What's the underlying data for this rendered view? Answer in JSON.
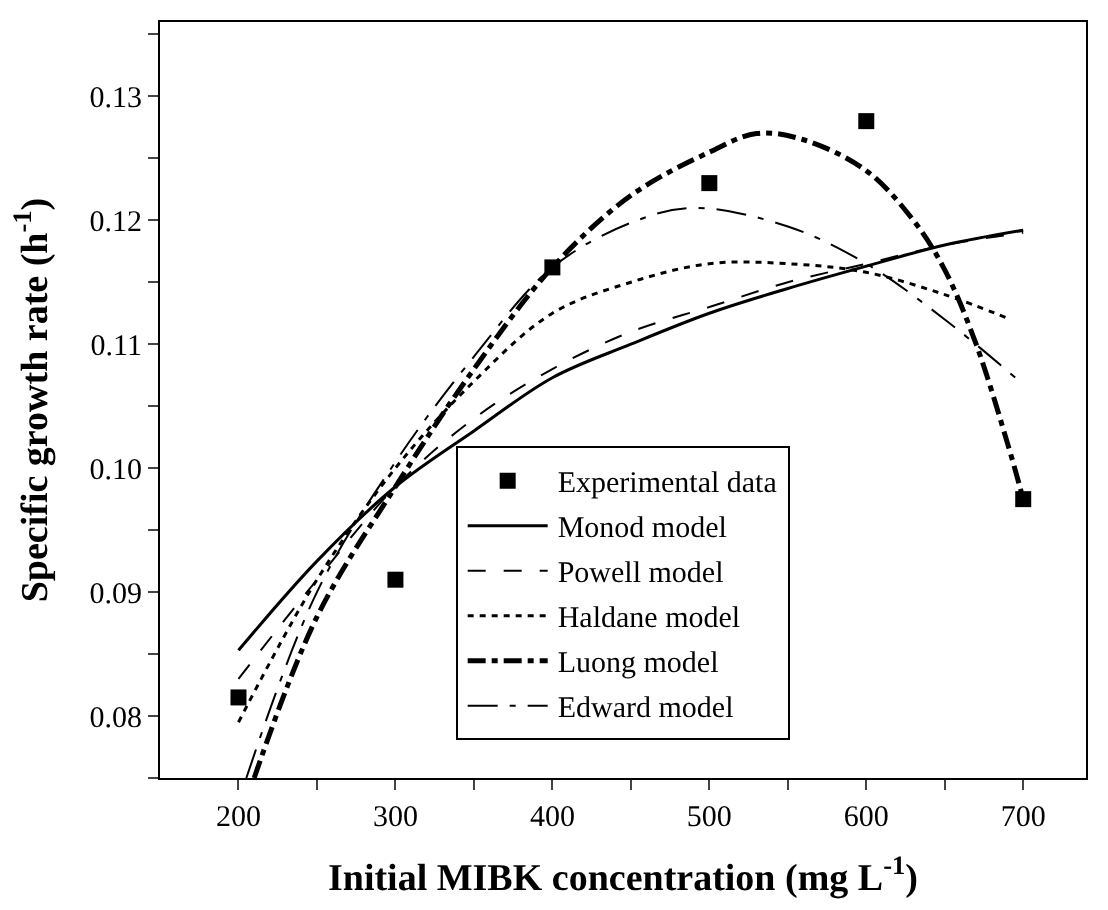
{
  "chart_data": {
    "type": "line",
    "xlabel": "Initial MIBK concentration (mg L$^{-1}$)",
    "ylabel": "Specific growth rate (h$^{-1}$)",
    "xlim": [
      150,
      740
    ],
    "ylim": [
      0.075,
      0.136
    ],
    "xticks": [
      200,
      {
        "value": 250,
        "label": null
      },
      300,
      {
        "value": 350,
        "label": null
      },
      400,
      {
        "value": 450,
        "label": null
      },
      500,
      {
        "value": 550,
        "label": null
      },
      600,
      {
        "value": 650,
        "label": null
      },
      700
    ],
    "yticks": [
      {
        "value": 0.075,
        "label": null
      },
      0.08,
      {
        "value": 0.085,
        "label": null
      },
      0.09,
      {
        "value": 0.095,
        "label": null
      },
      {
        "value": 0.1,
        "label": "0.10"
      },
      {
        "value": 0.105,
        "label": null
      },
      0.11,
      {
        "value": 0.115,
        "label": null
      },
      0.12,
      {
        "value": 0.125,
        "label": null
      },
      0.13,
      {
        "value": 0.135,
        "label": null
      }
    ],
    "legend": "bottom right",
    "series": [
      {
        "name": "Experimental data",
        "type": "scatter",
        "marker": "square",
        "color": "#000000",
        "x": [
          200,
          300,
          400,
          500,
          600,
          700
        ],
        "values": [
          0.0815,
          0.091,
          0.1162,
          0.123,
          0.128,
          0.0975
        ]
      },
      {
        "name": "Monod model",
        "line_style": "solid",
        "color": "#000000",
        "x": [
          200,
          250,
          300,
          350,
          400,
          450,
          500,
          550,
          600,
          650,
          700
        ],
        "values": [
          0.0853,
          0.0925,
          0.0985,
          0.103,
          0.1073,
          0.11,
          0.1125,
          0.1145,
          0.1163,
          0.118,
          0.1192
        ]
      },
      {
        "name": "Powell model",
        "line_style": "dashed",
        "color": "#000000",
        "x": [
          200,
          250,
          300,
          350,
          400,
          450,
          500,
          550,
          600,
          650,
          700
        ],
        "values": [
          0.083,
          0.091,
          0.0985,
          0.104,
          0.108,
          0.111,
          0.113,
          0.115,
          0.1165,
          0.118,
          0.119
        ]
      },
      {
        "name": "Haldane model",
        "line_style": "dotted",
        "color": "#000000",
        "x": [
          200,
          250,
          300,
          350,
          400,
          450,
          500,
          550,
          600,
          650,
          692
        ],
        "values": [
          0.0795,
          0.091,
          0.1,
          0.107,
          0.1125,
          0.115,
          0.1165,
          0.1165,
          0.1158,
          0.114,
          0.112
        ]
      },
      {
        "name": "Luong model",
        "line_style": "dashdot",
        "color": "#000000",
        "x": [
          210,
          250,
          300,
          350,
          400,
          450,
          500,
          530,
          560,
          600,
          630,
          650,
          670,
          690,
          700
        ],
        "values": [
          0.075,
          0.088,
          0.0985,
          0.108,
          0.1162,
          0.122,
          0.1255,
          0.127,
          0.1265,
          0.124,
          0.12,
          0.116,
          0.11,
          0.102,
          0.0975
        ]
      },
      {
        "name": "Edward model",
        "line_style": "dashdotdot",
        "color": "#000000",
        "x": [
          205,
          250,
          300,
          350,
          400,
          450,
          490,
          550,
          600,
          650,
          695
        ],
        "values": [
          0.075,
          0.09,
          0.1005,
          0.109,
          0.1162,
          0.1198,
          0.121,
          0.1195,
          0.1165,
          0.112,
          0.1073
        ]
      }
    ]
  }
}
